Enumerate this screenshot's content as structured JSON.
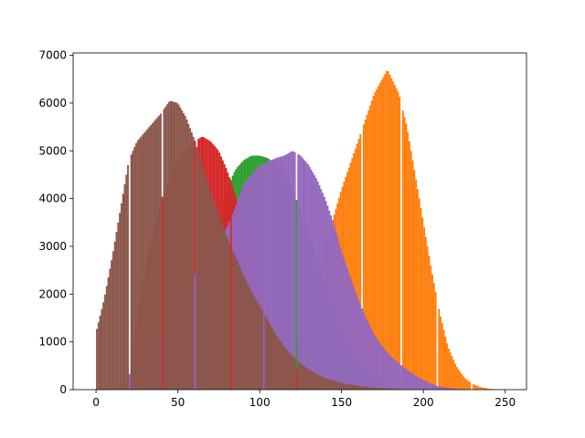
{
  "chart_data": {
    "type": "bar",
    "title": "",
    "xlabel": "",
    "ylabel": "",
    "xlim": [
      -14,
      263
    ],
    "ylim": [
      0,
      7050
    ],
    "xticks": [
      0,
      50,
      100,
      150,
      200,
      250
    ],
    "yticks": [
      0,
      1000,
      2000,
      3000,
      4000,
      5000,
      6000,
      7000
    ],
    "legend": "none",
    "grid": false,
    "bin_width": 1,
    "colors": {
      "orange": "#ff7f0e",
      "green": "#2ca02c",
      "red": "#d62728",
      "purple": "#9467bd",
      "brown": "#8c564b"
    },
    "series": [
      {
        "color": "orange",
        "anchors": [
          [
            0,
            0
          ],
          [
            100,
            0
          ],
          [
            120,
            700
          ],
          [
            130,
            1500
          ],
          [
            140,
            3000
          ],
          [
            150,
            4200
          ],
          [
            160,
            5200
          ],
          [
            170,
            6200
          ],
          [
            178,
            6700
          ],
          [
            185,
            6200
          ],
          [
            190,
            5500
          ],
          [
            195,
            4500
          ],
          [
            200,
            3500
          ],
          [
            205,
            2500
          ],
          [
            210,
            1600
          ],
          [
            215,
            900
          ],
          [
            220,
            500
          ],
          [
            225,
            250
          ],
          [
            230,
            120
          ],
          [
            235,
            50
          ],
          [
            240,
            20
          ],
          [
            245,
            0
          ],
          [
            255,
            0
          ]
        ],
        "gaps": [
          162,
          186,
          208,
          229
        ]
      },
      {
        "color": "green",
        "anchors": [
          [
            0,
            0
          ],
          [
            60,
            0
          ],
          [
            65,
            600
          ],
          [
            70,
            2000
          ],
          [
            75,
            3300
          ],
          [
            80,
            4200
          ],
          [
            85,
            4600
          ],
          [
            90,
            4800
          ],
          [
            95,
            4900
          ],
          [
            100,
            4900
          ],
          [
            105,
            4850
          ],
          [
            110,
            4700
          ],
          [
            115,
            4500
          ],
          [
            120,
            4200
          ],
          [
            130,
            3300
          ],
          [
            140,
            2200
          ],
          [
            150,
            1200
          ],
          [
            160,
            600
          ],
          [
            170,
            250
          ],
          [
            180,
            80
          ],
          [
            190,
            0
          ],
          [
            255,
            0
          ]
        ],
        "gaps": [
          107,
          142,
          178
        ]
      },
      {
        "color": "red",
        "anchors": [
          [
            0,
            0
          ],
          [
            20,
            0
          ],
          [
            25,
            1500
          ],
          [
            30,
            2500
          ],
          [
            40,
            4000
          ],
          [
            50,
            4800
          ],
          [
            60,
            5200
          ],
          [
            65,
            5300
          ],
          [
            70,
            5200
          ],
          [
            75,
            5000
          ],
          [
            80,
            4600
          ],
          [
            85,
            4100
          ],
          [
            90,
            3500
          ],
          [
            95,
            2800
          ],
          [
            100,
            2100
          ],
          [
            105,
            1500
          ],
          [
            110,
            1000
          ],
          [
            120,
            500
          ],
          [
            130,
            200
          ],
          [
            140,
            80
          ],
          [
            150,
            0
          ],
          [
            255,
            0
          ]
        ],
        "gaps": [
          21,
          61,
          106,
          142
        ]
      },
      {
        "color": "purple",
        "anchors": [
          [
            0,
            0
          ],
          [
            15,
            0
          ],
          [
            20,
            300
          ],
          [
            30,
            800
          ],
          [
            40,
            1300
          ],
          [
            50,
            1800
          ],
          [
            60,
            2400
          ],
          [
            70,
            3000
          ],
          [
            75,
            3200
          ],
          [
            80,
            3400
          ],
          [
            85,
            3800
          ],
          [
            90,
            4300
          ],
          [
            100,
            4700
          ],
          [
            110,
            4850
          ],
          [
            115,
            4900
          ],
          [
            120,
            5000
          ],
          [
            125,
            4900
          ],
          [
            130,
            4700
          ],
          [
            135,
            4400
          ],
          [
            140,
            4000
          ],
          [
            145,
            3500
          ],
          [
            150,
            2900
          ],
          [
            155,
            2400
          ],
          [
            160,
            1900
          ],
          [
            165,
            1500
          ],
          [
            170,
            1150
          ],
          [
            175,
            900
          ],
          [
            180,
            700
          ],
          [
            185,
            550
          ],
          [
            190,
            420
          ],
          [
            195,
            300
          ],
          [
            200,
            200
          ],
          [
            205,
            120
          ],
          [
            210,
            60
          ],
          [
            220,
            20
          ],
          [
            230,
            0
          ],
          [
            255,
            0
          ]
        ],
        "gaps": [
          40,
          82,
          122
        ]
      },
      {
        "color": "brown",
        "anchors": [
          [
            0,
            1200
          ],
          [
            5,
            1900
          ],
          [
            10,
            2800
          ],
          [
            15,
            3800
          ],
          [
            20,
            4800
          ],
          [
            25,
            5200
          ],
          [
            30,
            5400
          ],
          [
            35,
            5600
          ],
          [
            40,
            5800
          ],
          [
            45,
            6050
          ],
          [
            50,
            6000
          ],
          [
            55,
            5700
          ],
          [
            60,
            5250
          ],
          [
            65,
            4700
          ],
          [
            70,
            4150
          ],
          [
            75,
            3650
          ],
          [
            80,
            3200
          ],
          [
            85,
            2800
          ],
          [
            90,
            2400
          ],
          [
            95,
            2050
          ],
          [
            100,
            1750
          ],
          [
            105,
            1450
          ],
          [
            110,
            1150
          ],
          [
            115,
            900
          ],
          [
            120,
            700
          ],
          [
            125,
            550
          ],
          [
            130,
            420
          ],
          [
            135,
            320
          ],
          [
            140,
            240
          ],
          [
            150,
            140
          ],
          [
            160,
            80
          ],
          [
            170,
            40
          ],
          [
            180,
            20
          ],
          [
            190,
            0
          ],
          [
            255,
            0
          ]
        ],
        "gaps": [
          20,
          40,
          60,
          82,
          102,
          122
        ]
      }
    ]
  }
}
